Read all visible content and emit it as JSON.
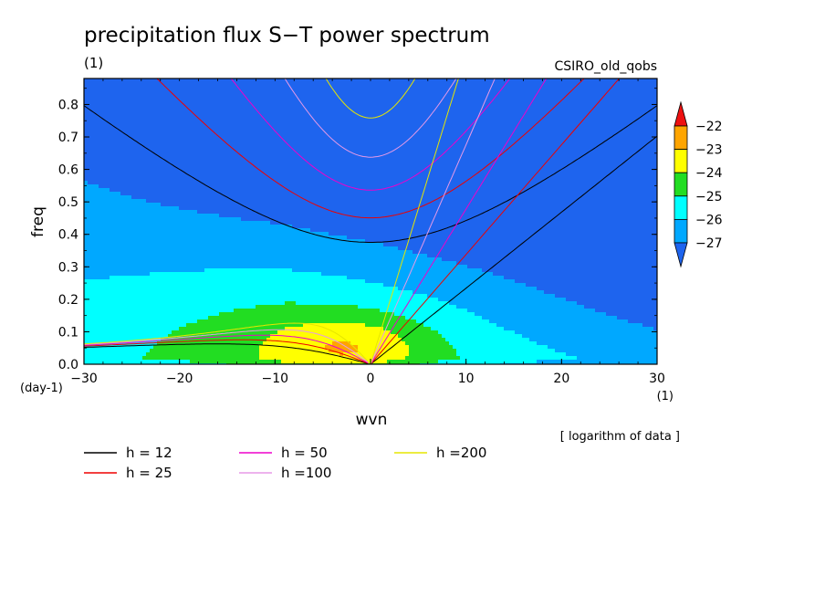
{
  "chart_data": {
    "type": "heatmap",
    "title": "precipitation flux S−T power spectrum",
    "title_units": "(1)",
    "model_label": "CSIRO_old_qobs",
    "xlabel": "wvn",
    "x_units": "(1)",
    "ylabel": "freq",
    "y_units": "(day-1)",
    "xlim": [
      -30,
      30
    ],
    "ylim": [
      0,
      0.88
    ],
    "x_ticks": [
      -30,
      -20,
      -10,
      0,
      10,
      20,
      30
    ],
    "y_ticks": [
      0.0,
      0.1,
      0.2,
      0.3,
      0.4,
      0.5,
      0.6,
      0.7,
      0.8
    ],
    "colorbar": {
      "levels": [
        -22,
        -23,
        -24,
        -25,
        -26,
        -27
      ],
      "colors": [
        "#ee1111",
        "#ffa500",
        "#ffff00",
        "#22dd22",
        "#00ffff",
        "#00a8ff",
        "#1e64ee"
      ],
      "note": "[ logarithm of data ]"
    },
    "dispersion_curves": [
      {
        "name": "h = 12",
        "h": 12,
        "color": "#000000"
      },
      {
        "name": "h = 25",
        "h": 25,
        "color": "#ee0000"
      },
      {
        "name": "h = 50",
        "h": 50,
        "color": "#ee00cc"
      },
      {
        "name": "h =100",
        "h": 100,
        "color": "#e79ae7"
      },
      {
        "name": "h =200",
        "h": 200,
        "color": "#e6e600"
      }
    ]
  }
}
